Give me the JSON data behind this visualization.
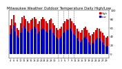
{
  "title": "Milwaukee Weather Outdoor Temperature Daily High/Low",
  "title_fontsize": 3.8,
  "background_color": "#ffffff",
  "high_color": "#dd0000",
  "low_color": "#0000cc",
  "ylim": [
    -10,
    100
  ],
  "yticks": [
    0,
    20,
    40,
    60,
    80,
    100
  ],
  "ytick_labels": [
    "0",
    "20",
    "40",
    "60",
    "80",
    "100"
  ],
  "ytick_fontsize": 2.8,
  "xtick_fontsize": 2.5,
  "legend_fontsize": 2.8,
  "days": [
    4,
    5,
    6,
    7,
    8,
    9,
    10,
    11,
    12,
    13,
    14,
    15,
    16,
    17,
    18,
    19,
    20,
    21,
    22,
    23,
    24,
    25,
    26,
    27,
    28,
    29,
    30,
    31,
    1,
    2,
    3,
    4,
    5,
    6,
    7,
    8,
    9,
    10,
    11,
    12,
    13,
    14,
    15,
    16,
    17,
    18,
    19,
    20,
    21,
    22,
    23,
    24,
    25,
    26,
    27,
    28,
    29,
    30
  ],
  "highs": [
    65,
    80,
    90,
    72,
    60,
    55,
    70,
    85,
    88,
    80,
    75,
    70,
    78,
    82,
    85,
    80,
    68,
    75,
    80,
    85,
    80,
    75,
    70,
    78,
    82,
    70,
    65,
    60,
    55,
    58,
    62,
    70,
    75,
    80,
    78,
    82,
    75,
    70,
    65,
    58,
    52,
    48,
    55,
    60,
    62,
    55,
    48,
    42,
    45,
    50,
    55,
    60,
    58,
    52,
    48,
    42,
    38,
    40
  ],
  "lows": [
    45,
    58,
    65,
    52,
    42,
    38,
    48,
    60,
    64,
    58,
    52,
    48,
    55,
    58,
    62,
    57,
    46,
    52,
    56,
    60,
    56,
    52,
    48,
    54,
    58,
    48,
    42,
    38,
    34,
    36,
    40,
    48,
    52,
    56,
    54,
    58,
    52,
    46,
    42,
    36,
    30,
    26,
    32,
    38,
    40,
    34,
    26,
    20,
    24,
    28,
    32,
    38,
    36,
    30,
    26,
    20,
    16,
    18
  ],
  "dashed_lines": [
    28,
    31,
    34,
    37
  ],
  "bar_width": 0.8
}
